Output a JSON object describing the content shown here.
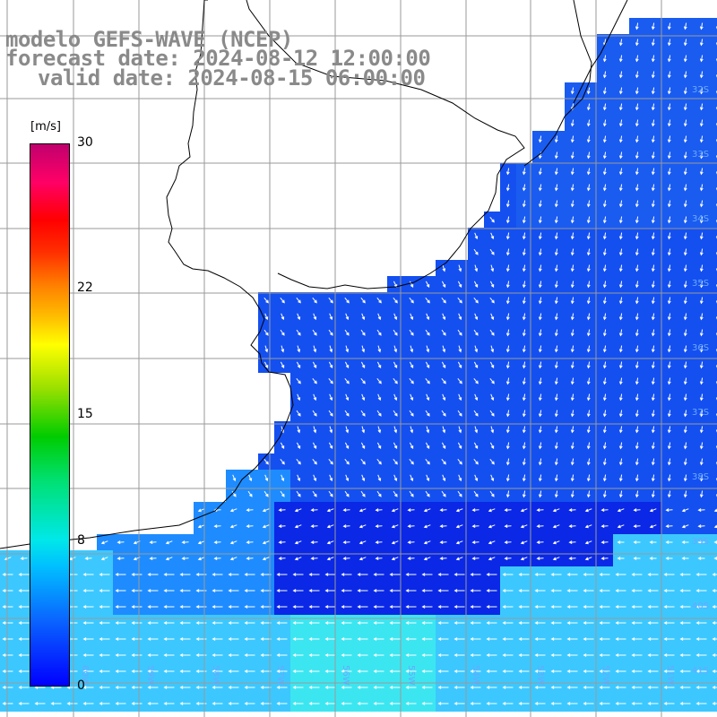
{
  "title": {
    "line1": "modelo GEFS-WAVE (NCEP)",
    "line2": "forecast date: 2024-08-12 12:00:00",
    "line3": "valid date: 2024-08-15 06:00:00"
  },
  "colorbar": {
    "units": "[m/s]",
    "ticks": [
      "30",
      "22",
      "15",
      "8",
      "0"
    ],
    "tick_values": [
      30,
      22,
      15,
      8,
      0
    ],
    "min": 0,
    "max": 30
  },
  "map": {
    "variable": "wind speed and direction",
    "lat_labels": [
      "32S",
      "33S",
      "34S",
      "35S",
      "36S",
      "37S",
      "38S",
      "39S",
      "40S",
      "41S"
    ],
    "lon_labels": [
      "60W",
      "59W",
      "58W",
      "57W",
      "56W",
      "55W",
      "54W",
      "53W",
      "52W",
      "51W"
    ],
    "colors": {
      "ocean_calm": "#1450f0",
      "ocean_deep_calm": "#0a28e6",
      "ocean_moderate": "#1e8cff",
      "ocean_strong": "#3cc8ff",
      "land": "#ffffff",
      "coastline": "#000000",
      "grid": "#9a9a9a",
      "arrows": "#ffffff",
      "title_text": "#8a8a8a"
    }
  }
}
